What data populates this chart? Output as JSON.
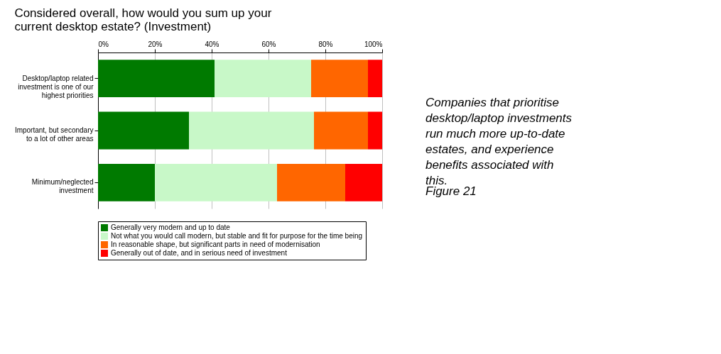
{
  "chart_data": {
    "type": "bar",
    "orientation": "horizontal",
    "stacked": true,
    "title": "Considered overall, how would you sum up your current desktop estate? (Investment)",
    "categories": [
      "Desktop/laptop related investment  is one of our highest priorities",
      "Important, but secondary to a lot of other areas",
      "Minimum/neglected investment"
    ],
    "series": [
      {
        "name": "Generally very modern and up to date",
        "color": "#007a00",
        "values": [
          41,
          32,
          20
        ]
      },
      {
        "name": "Not what you would call modern, but stable and fit for purpose for the time being",
        "color": "#c8f8c8",
        "values": [
          34,
          44,
          43
        ]
      },
      {
        "name": "In reasonable shape, but significant parts in need of modernisation",
        "color": "#ff6600",
        "values": [
          20,
          19,
          24
        ]
      },
      {
        "name": "Generally out of date, and in serious need of investment",
        "color": "#ff0000",
        "values": [
          5,
          5,
          13
        ]
      }
    ],
    "xlim": [
      0,
      100
    ],
    "xticks": [
      {
        "value": 0,
        "label": "0%"
      },
      {
        "value": 20,
        "label": "20%"
      },
      {
        "value": 40,
        "label": "40%"
      },
      {
        "value": 60,
        "label": "60%"
      },
      {
        "value": 80,
        "label": "80%"
      },
      {
        "value": 100,
        "label": "100%"
      }
    ],
    "grid": "x",
    "legend": "bottom",
    "annotations": [
      "Companies that prioritise desktop/laptop investments run much more up-to-date estates, and experience benefits associated with this.",
      "Figure 21"
    ]
  }
}
